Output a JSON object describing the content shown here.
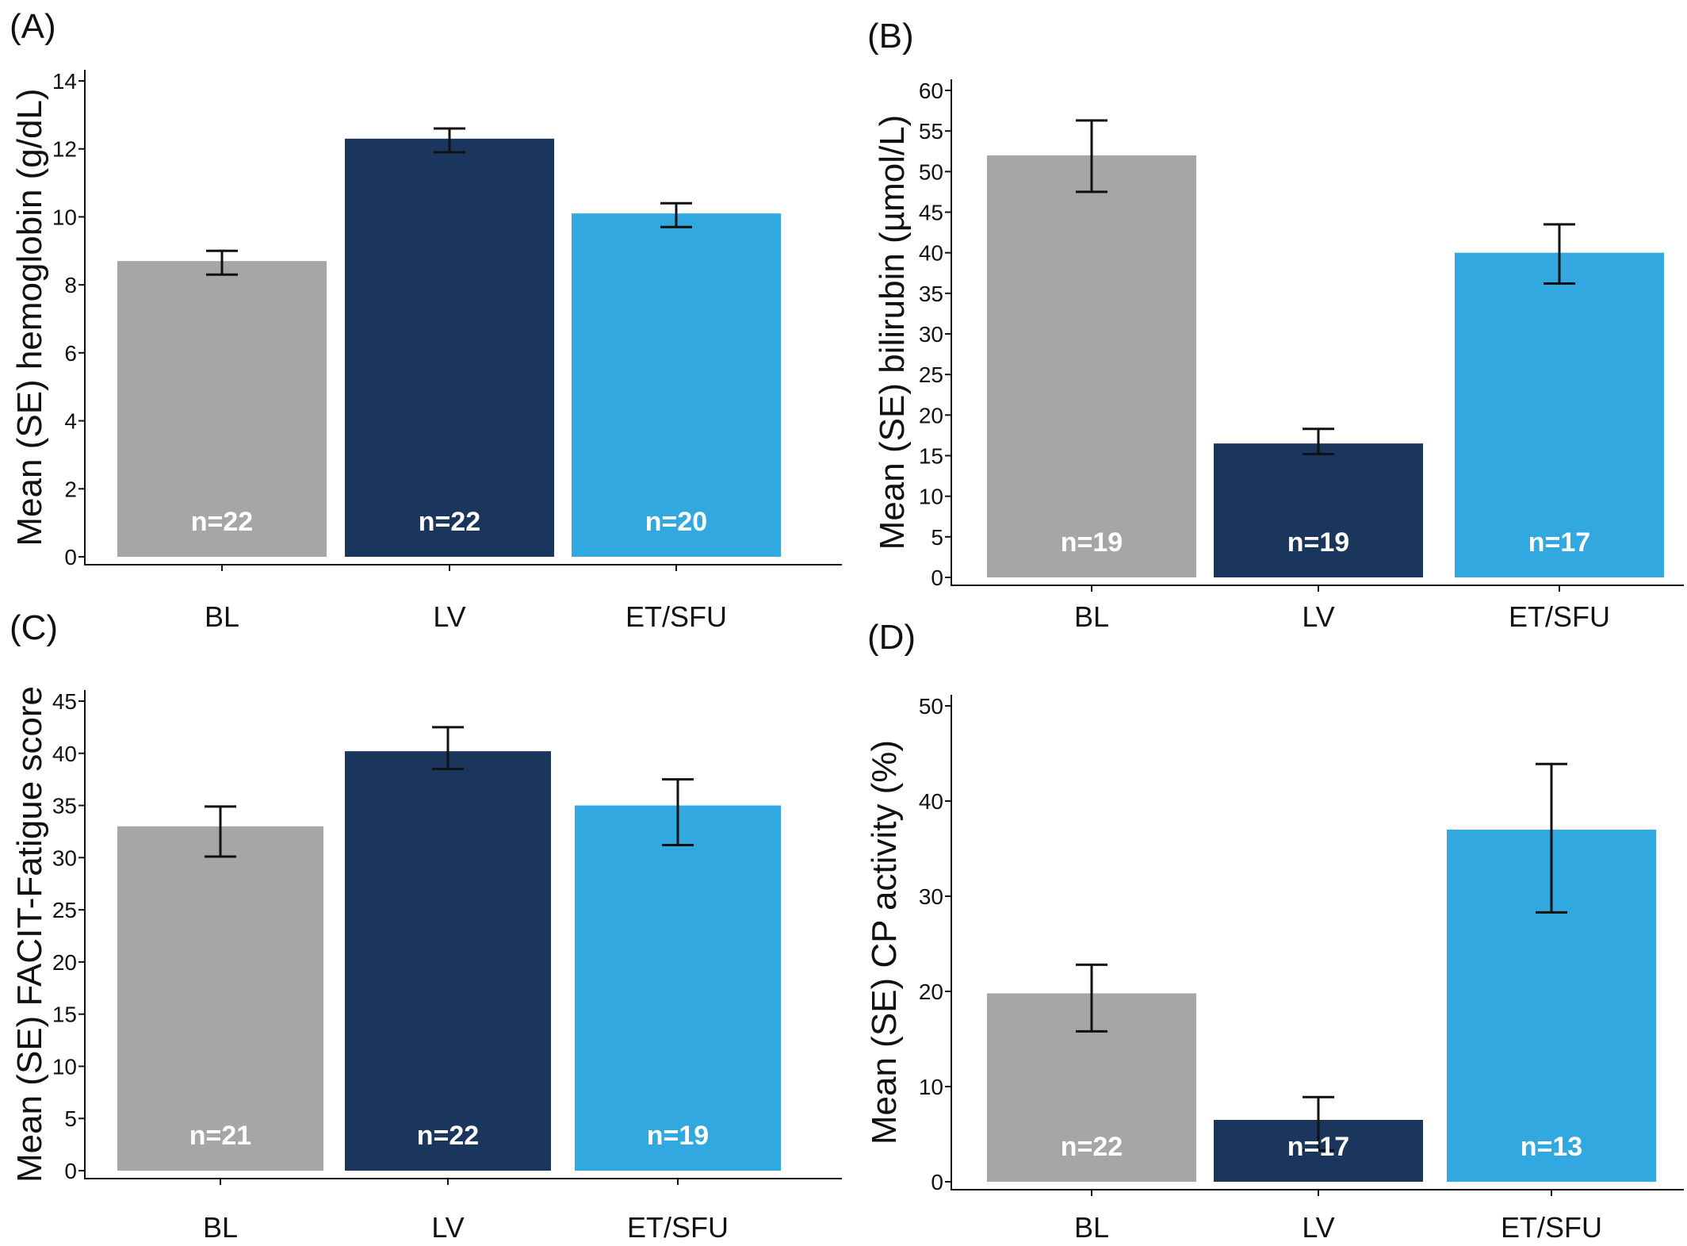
{
  "colors": {
    "BL": "#a6a6a6",
    "LV": "#1a365d",
    "ET/SFU": "#32a8e0"
  },
  "chart_data": [
    {
      "type": "bar",
      "panel": "(A)",
      "categories": [
        "BL",
        "LV",
        "ET/SFU"
      ],
      "values": [
        8.7,
        12.3,
        10.1
      ],
      "se_low": [
        8.3,
        11.9,
        9.7
      ],
      "se_high": [
        9.0,
        12.6,
        10.4
      ],
      "n_labels": [
        "n=22",
        "n=22",
        "n=20"
      ],
      "ylabel": "Mean (SE) hemoglobin (g/dL)",
      "ylim": [
        0,
        14
      ],
      "yticks": [
        0,
        2,
        4,
        6,
        8,
        10,
        12,
        14
      ],
      "grid": false
    },
    {
      "type": "bar",
      "panel": "(B)",
      "categories": [
        "BL",
        "LV",
        "ET/SFU"
      ],
      "values": [
        52,
        16.5,
        40
      ],
      "se_low": [
        47.5,
        15.2,
        36.2
      ],
      "se_high": [
        56.3,
        18.3,
        43.5
      ],
      "n_labels": [
        "n=19",
        "n=19",
        "n=17"
      ],
      "ylabel": "Mean (SE) bilirubin (µmol/L)",
      "ylim": [
        0,
        60
      ],
      "yticks": [
        0,
        5,
        10,
        15,
        20,
        25,
        30,
        35,
        40,
        45,
        50,
        55,
        60
      ],
      "grid": false
    },
    {
      "type": "bar",
      "panel": "(C)",
      "categories": [
        "BL",
        "LV",
        "ET/SFU"
      ],
      "values": [
        33,
        40.2,
        35
      ],
      "se_low": [
        30.1,
        38.5,
        31.2
      ],
      "se_high": [
        34.9,
        42.5,
        37.5
      ],
      "n_labels": [
        "n=21",
        "n=22",
        "n=19"
      ],
      "ylabel": "Mean (SE) FACIT-Fatigue score",
      "ylim": [
        0,
        45
      ],
      "yticks": [
        0,
        5,
        10,
        15,
        20,
        25,
        30,
        35,
        40,
        45
      ],
      "grid": false
    },
    {
      "type": "bar",
      "panel": "(D)",
      "categories": [
        "BL",
        "LV",
        "ET/SFU"
      ],
      "values": [
        19.8,
        6.5,
        37
      ],
      "se_low": [
        15.8,
        3.3,
        28.3
      ],
      "se_high": [
        22.8,
        8.9,
        43.9
      ],
      "n_labels": [
        "n=22",
        "n=17",
        "n=13"
      ],
      "ylabel": "Mean (SE) CP activity (%)",
      "ylim": [
        0,
        50
      ],
      "yticks": [
        0,
        10,
        20,
        30,
        40,
        50
      ],
      "grid": false
    }
  ]
}
